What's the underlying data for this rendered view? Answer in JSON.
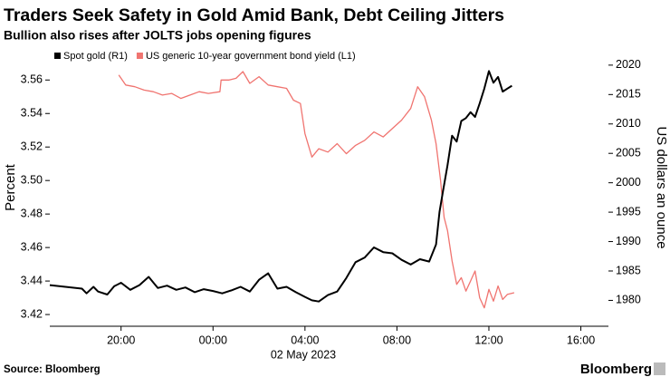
{
  "chart_data": {
    "type": "line",
    "title": "Traders Seek Safety in Gold Amid Bank, Debt Ceiling Jitters",
    "subtitle": "Bullion also rises after JOLTS jobs opening figures",
    "source": "Source: Bloomberg",
    "brand": "Bloomberg",
    "date_label": "02 May 2023",
    "ylabel": "Percent",
    "y2label": "US dollars an ounce",
    "xlim": [
      -7.1,
      17.2
    ],
    "xticks": [
      {
        "value": -4,
        "label": "20:00"
      },
      {
        "value": 0,
        "label": "00:00"
      },
      {
        "value": 4,
        "label": "04:00"
      },
      {
        "value": 8,
        "label": "08:00"
      },
      {
        "value": 12,
        "label": "12:00"
      },
      {
        "value": 16,
        "label": "16:00"
      }
    ],
    "ylim": [
      3.413,
      3.578
    ],
    "yticks": [
      3.42,
      3.44,
      3.46,
      3.48,
      {
        "value": 3.5,
        "label": "3.50"
      },
      3.52,
      3.54,
      3.56
    ],
    "y2lim": [
      1975.6,
      2022.6
    ],
    "y2ticks": [
      1980,
      1985,
      1990,
      1995,
      2000,
      2005,
      2010,
      2015,
      2020
    ],
    "grid": false,
    "legend": "top-left",
    "series": [
      {
        "name": "Spot gold (R1)",
        "color": "#000000",
        "axis": "y2",
        "x": [
          -7.1,
          -5.7,
          -5.5,
          -5.2,
          -5,
          -4.6,
          -4.3,
          -4,
          -3.6,
          -3.2,
          -2.8,
          -2.4,
          -2,
          -1.6,
          -1.2,
          -0.8,
          -0.4,
          0,
          0.4,
          0.8,
          1.2,
          1.6,
          2,
          2.4,
          2.8,
          3.2,
          3.6,
          4,
          4.3,
          4.6,
          5,
          5.4,
          5.8,
          6.2,
          6.6,
          7,
          7.4,
          7.8,
          8.2,
          8.6,
          9,
          9.4,
          9.7,
          9.85,
          10,
          10.2,
          10.4,
          10.6,
          10.8,
          11,
          11.2,
          11.4,
          11.6,
          11.8,
          12,
          12.2,
          12.4,
          12.6,
          12.8,
          13
        ],
        "values": [
          1982.6,
          1982.0,
          1981.2,
          1982.3,
          1981.5,
          1981.0,
          1982.4,
          1983.0,
          1981.8,
          1982.6,
          1984.0,
          1982.1,
          1982.5,
          1981.8,
          1982.2,
          1981.4,
          1981.9,
          1981.6,
          1981.2,
          1981.7,
          1982.3,
          1981.5,
          1983.5,
          1984.6,
          1982.0,
          1982.3,
          1981.4,
          1980.6,
          1980.0,
          1979.8,
          1980.9,
          1981.5,
          1983.8,
          1986.5,
          1987.3,
          1989.0,
          1988.2,
          1988.0,
          1986.9,
          1986.1,
          1987.0,
          1986.6,
          1989.5,
          1995.0,
          1998.5,
          2003.0,
          2008.0,
          2007.0,
          2010.5,
          2011.0,
          2012.0,
          2011.2,
          2013.5,
          2016.0,
          2019.0,
          2017.0,
          2018.0,
          2015.5,
          2016.0,
          2016.5
        ]
      },
      {
        "name": "US generic 10-year government bond yield (L1)",
        "color": "#f07470",
        "axis": "y",
        "x": [
          -4.1,
          -3.8,
          -3.4,
          -3,
          -2.6,
          -2.2,
          -1.8,
          -1.4,
          -1,
          -0.6,
          -0.2,
          0.3,
          0.35,
          0.7,
          1,
          1.3,
          1.6,
          2,
          2.4,
          2.8,
          3.2,
          3.5,
          3.8,
          4,
          4.3,
          4.6,
          5,
          5.4,
          5.8,
          6.2,
          6.6,
          7,
          7.4,
          7.8,
          8.2,
          8.6,
          8.9,
          9.2,
          9.5,
          9.7,
          9.9,
          10.05,
          10.2,
          10.4,
          10.6,
          10.8,
          11,
          11.2,
          11.4,
          11.6,
          11.8,
          12,
          12.2,
          12.4,
          12.6,
          12.8,
          13.1
        ],
        "values": [
          3.563,
          3.557,
          3.556,
          3.554,
          3.553,
          3.551,
          3.552,
          3.549,
          3.551,
          3.553,
          3.552,
          3.553,
          3.56,
          3.56,
          3.561,
          3.565,
          3.558,
          3.562,
          3.557,
          3.556,
          3.555,
          3.548,
          3.546,
          3.528,
          3.514,
          3.519,
          3.517,
          3.522,
          3.516,
          3.521,
          3.524,
          3.529,
          3.526,
          3.531,
          3.536,
          3.543,
          3.556,
          3.55,
          3.536,
          3.522,
          3.5,
          3.478,
          3.47,
          3.452,
          3.438,
          3.442,
          3.434,
          3.44,
          3.446,
          3.43,
          3.424,
          3.435,
          3.428,
          3.437,
          3.429,
          3.432,
          3.433
        ]
      }
    ]
  }
}
